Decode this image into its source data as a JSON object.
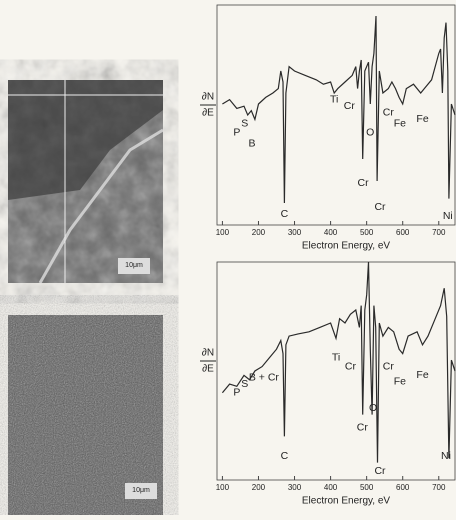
{
  "micrographs": [
    {
      "scale_label": "10μm"
    },
    {
      "scale_label": "10μm"
    }
  ],
  "chart_data": [
    {
      "type": "line",
      "x_label": "Electron Energy, eV",
      "y_label_top": "∂N",
      "y_label_bottom": "∂E",
      "xlim": [
        85,
        745
      ],
      "ylim": [
        0,
        100
      ],
      "xticks": [
        100,
        200,
        300,
        400,
        500,
        600,
        700
      ],
      "x": [
        100,
        120,
        140,
        160,
        170,
        180,
        190,
        200,
        220,
        240,
        255,
        262,
        268,
        272,
        276,
        285,
        300,
        330,
        360,
        380,
        400,
        410,
        420,
        440,
        460,
        470,
        475,
        480,
        485,
        489,
        495,
        505,
        510,
        515,
        520,
        526,
        529,
        535,
        545,
        560,
        570,
        580,
        590,
        600,
        610,
        630,
        650,
        660,
        680,
        700,
        705,
        710,
        715,
        720,
        725,
        728,
        735,
        745
      ],
      "series": [
        {
          "color": "#2a2a2a",
          "values": [
            55,
            57,
            53,
            54,
            50,
            52,
            48,
            55,
            58,
            60,
            62,
            70,
            65,
            10,
            60,
            72,
            70,
            68,
            66,
            64,
            65,
            60,
            62,
            65,
            68,
            72,
            62,
            70,
            75,
            30,
            70,
            74,
            55,
            72,
            78,
            95,
            20,
            70,
            60,
            62,
            65,
            62,
            58,
            55,
            62,
            64,
            60,
            62,
            66,
            78,
            80,
            60,
            85,
            92,
            70,
            12,
            55,
            50
          ]
        }
      ],
      "annotations": [
        {
          "text": "P",
          "x": 140,
          "y": 42
        },
        {
          "text": "S",
          "x": 162,
          "y": 46
        },
        {
          "text": "B",
          "x": 182,
          "y": 37
        },
        {
          "text": "C",
          "x": 272,
          "y": 5
        },
        {
          "text": "Ti",
          "x": 410,
          "y": 57
        },
        {
          "text": "Cr",
          "x": 452,
          "y": 54
        },
        {
          "text": "Cr",
          "x": 490,
          "y": 19
        },
        {
          "text": "O",
          "x": 510,
          "y": 42
        },
        {
          "text": "Cr",
          "x": 537,
          "y": 8
        },
        {
          "text": "Cr",
          "x": 560,
          "y": 51
        },
        {
          "text": "Fe",
          "x": 592,
          "y": 46
        },
        {
          "text": "Fe",
          "x": 655,
          "y": 48
        },
        {
          "text": "Ni",
          "x": 725,
          "y": 4
        }
      ]
    },
    {
      "type": "line",
      "x_label": "Electron Energy, eV",
      "y_label_top": "∂N",
      "y_label_bottom": "∂E",
      "xlim": [
        85,
        745
      ],
      "ylim": [
        0,
        100
      ],
      "xticks": [
        100,
        200,
        300,
        400,
        500,
        600,
        700
      ],
      "x": [
        100,
        120,
        140,
        160,
        175,
        190,
        210,
        230,
        250,
        262,
        268,
        272,
        276,
        285,
        310,
        340,
        370,
        400,
        415,
        425,
        440,
        455,
        470,
        480,
        485,
        489,
        495,
        500,
        505,
        510,
        515,
        520,
        525,
        530,
        535,
        545,
        560,
        575,
        590,
        600,
        615,
        640,
        655,
        670,
        690,
        705,
        715,
        722,
        728,
        735,
        745
      ],
      "series": [
        {
          "color": "#2a2a2a",
          "values": [
            40,
            44,
            43,
            48,
            46,
            50,
            52,
            56,
            60,
            64,
            58,
            20,
            62,
            66,
            67,
            68,
            70,
            72,
            65,
            74,
            72,
            76,
            78,
            70,
            80,
            30,
            78,
            85,
            100,
            60,
            30,
            80,
            70,
            8,
            72,
            66,
            70,
            68,
            60,
            58,
            66,
            68,
            62,
            66,
            74,
            80,
            88,
            75,
            10,
            55,
            50
          ]
        }
      ],
      "annotations": [
        {
          "text": "P",
          "x": 140,
          "y": 40
        },
        {
          "text": "S",
          "x": 162,
          "y": 44
        },
        {
          "text": "B + Cr",
          "x": 215,
          "y": 47
        },
        {
          "text": "Ti",
          "x": 415,
          "y": 56
        },
        {
          "text": "Cr",
          "x": 455,
          "y": 52
        },
        {
          "text": "C",
          "x": 272,
          "y": 11
        },
        {
          "text": "Cr",
          "x": 488,
          "y": 24
        },
        {
          "text": "O",
          "x": 518,
          "y": 33
        },
        {
          "text": "Cr",
          "x": 537,
          "y": 4
        },
        {
          "text": "Cr",
          "x": 560,
          "y": 52
        },
        {
          "text": "Fe",
          "x": 592,
          "y": 45
        },
        {
          "text": "Fe",
          "x": 655,
          "y": 48
        },
        {
          "text": "Ni",
          "x": 720,
          "y": 11
        }
      ]
    }
  ]
}
